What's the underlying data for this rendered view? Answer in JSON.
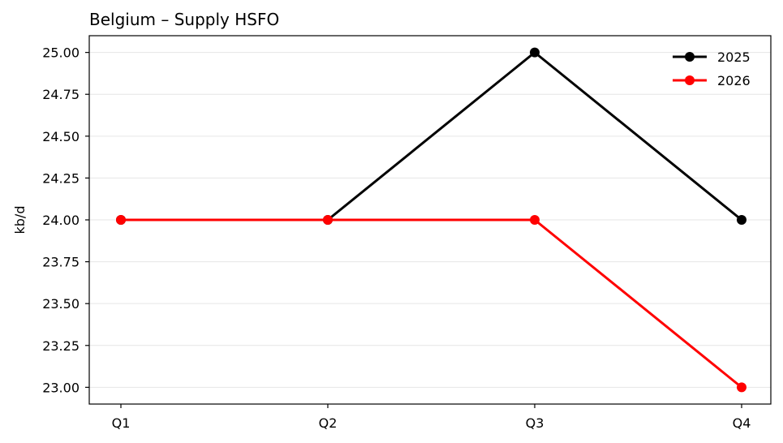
{
  "chart_data": {
    "type": "line",
    "title": "Belgium – Supply HSFO",
    "xlabel": "",
    "ylabel": "kb/d",
    "categories": [
      "Q1",
      "Q2",
      "Q3",
      "Q4"
    ],
    "ylim": [
      22.9,
      25.1
    ],
    "yticks": [
      23.0,
      23.25,
      23.5,
      23.75,
      24.0,
      24.25,
      24.5,
      24.75,
      25.0
    ],
    "ytick_labels": [
      "23.00",
      "23.25",
      "23.50",
      "23.75",
      "24.00",
      "24.25",
      "24.50",
      "24.75",
      "25.00"
    ],
    "grid": "horizontal",
    "legend": "top-right",
    "series": [
      {
        "name": "2025",
        "color": "#000000",
        "values": [
          24,
          24,
          25,
          24
        ]
      },
      {
        "name": "2026",
        "color": "#ff0000",
        "values": [
          24,
          24,
          24,
          23
        ]
      }
    ]
  }
}
